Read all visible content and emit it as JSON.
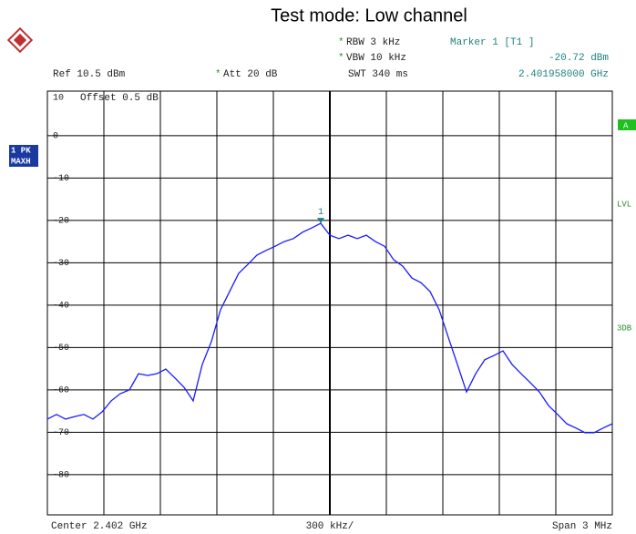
{
  "chart_data": {
    "type": "line",
    "title": "Test mode: Low channel",
    "star": "*",
    "rbw": "RBW 3 kHz",
    "vbw": "VBW 10 kHz",
    "swt": "SWT 340 ms",
    "att": "Att 20 dB",
    "ref": "Ref 10.5 dBm",
    "offset": "Offset 0.5 dB",
    "marker_title": "Marker 1 [T1 ]",
    "marker_level": "-20.72 dBm",
    "marker_freq": "2.401958000 GHz",
    "trace_labels": [
      "1 PK",
      "MAXH"
    ],
    "side_labels": [
      "A",
      "LVL",
      "3DB"
    ],
    "center": "Center 2.402 GHz",
    "div": "300 kHz/",
    "span": "Span 3 MHz",
    "marker": {
      "label": "1",
      "index": 30,
      "value": -20.72
    },
    "color": "#1a1aff",
    "ylim": [
      -89.5,
      10.5
    ],
    "yticks": [
      10,
      0,
      -10,
      -20,
      -30,
      -40,
      -50,
      -60,
      -70,
      -80
    ],
    "grid": true,
    "values": [
      -66.9,
      -65.8,
      -66.9,
      -66.3,
      -65.8,
      -66.9,
      -65.2,
      -62.6,
      -60.9,
      -60,
      -56.2,
      -56.6,
      -56.2,
      -55.1,
      -57.2,
      -59.4,
      -62.6,
      -54,
      -48.6,
      -41.1,
      -36.8,
      -32.5,
      -30.4,
      -28.2,
      -27.1,
      -26.1,
      -25,
      -24.3,
      -22.8,
      -21.8,
      -20.7,
      -23.5,
      -24.3,
      -23.5,
      -24.3,
      -23.5,
      -25,
      -26.1,
      -29.3,
      -30.8,
      -33.6,
      -34.7,
      -36.8,
      -41.1,
      -47.6,
      -54,
      -60.5,
      -56.2,
      -52.9,
      -51.9,
      -50.8,
      -54,
      -56.2,
      -58.3,
      -60.5,
      -63.7,
      -65.8,
      -68,
      -69,
      -70.1,
      -70.1,
      -69,
      -68
    ]
  }
}
